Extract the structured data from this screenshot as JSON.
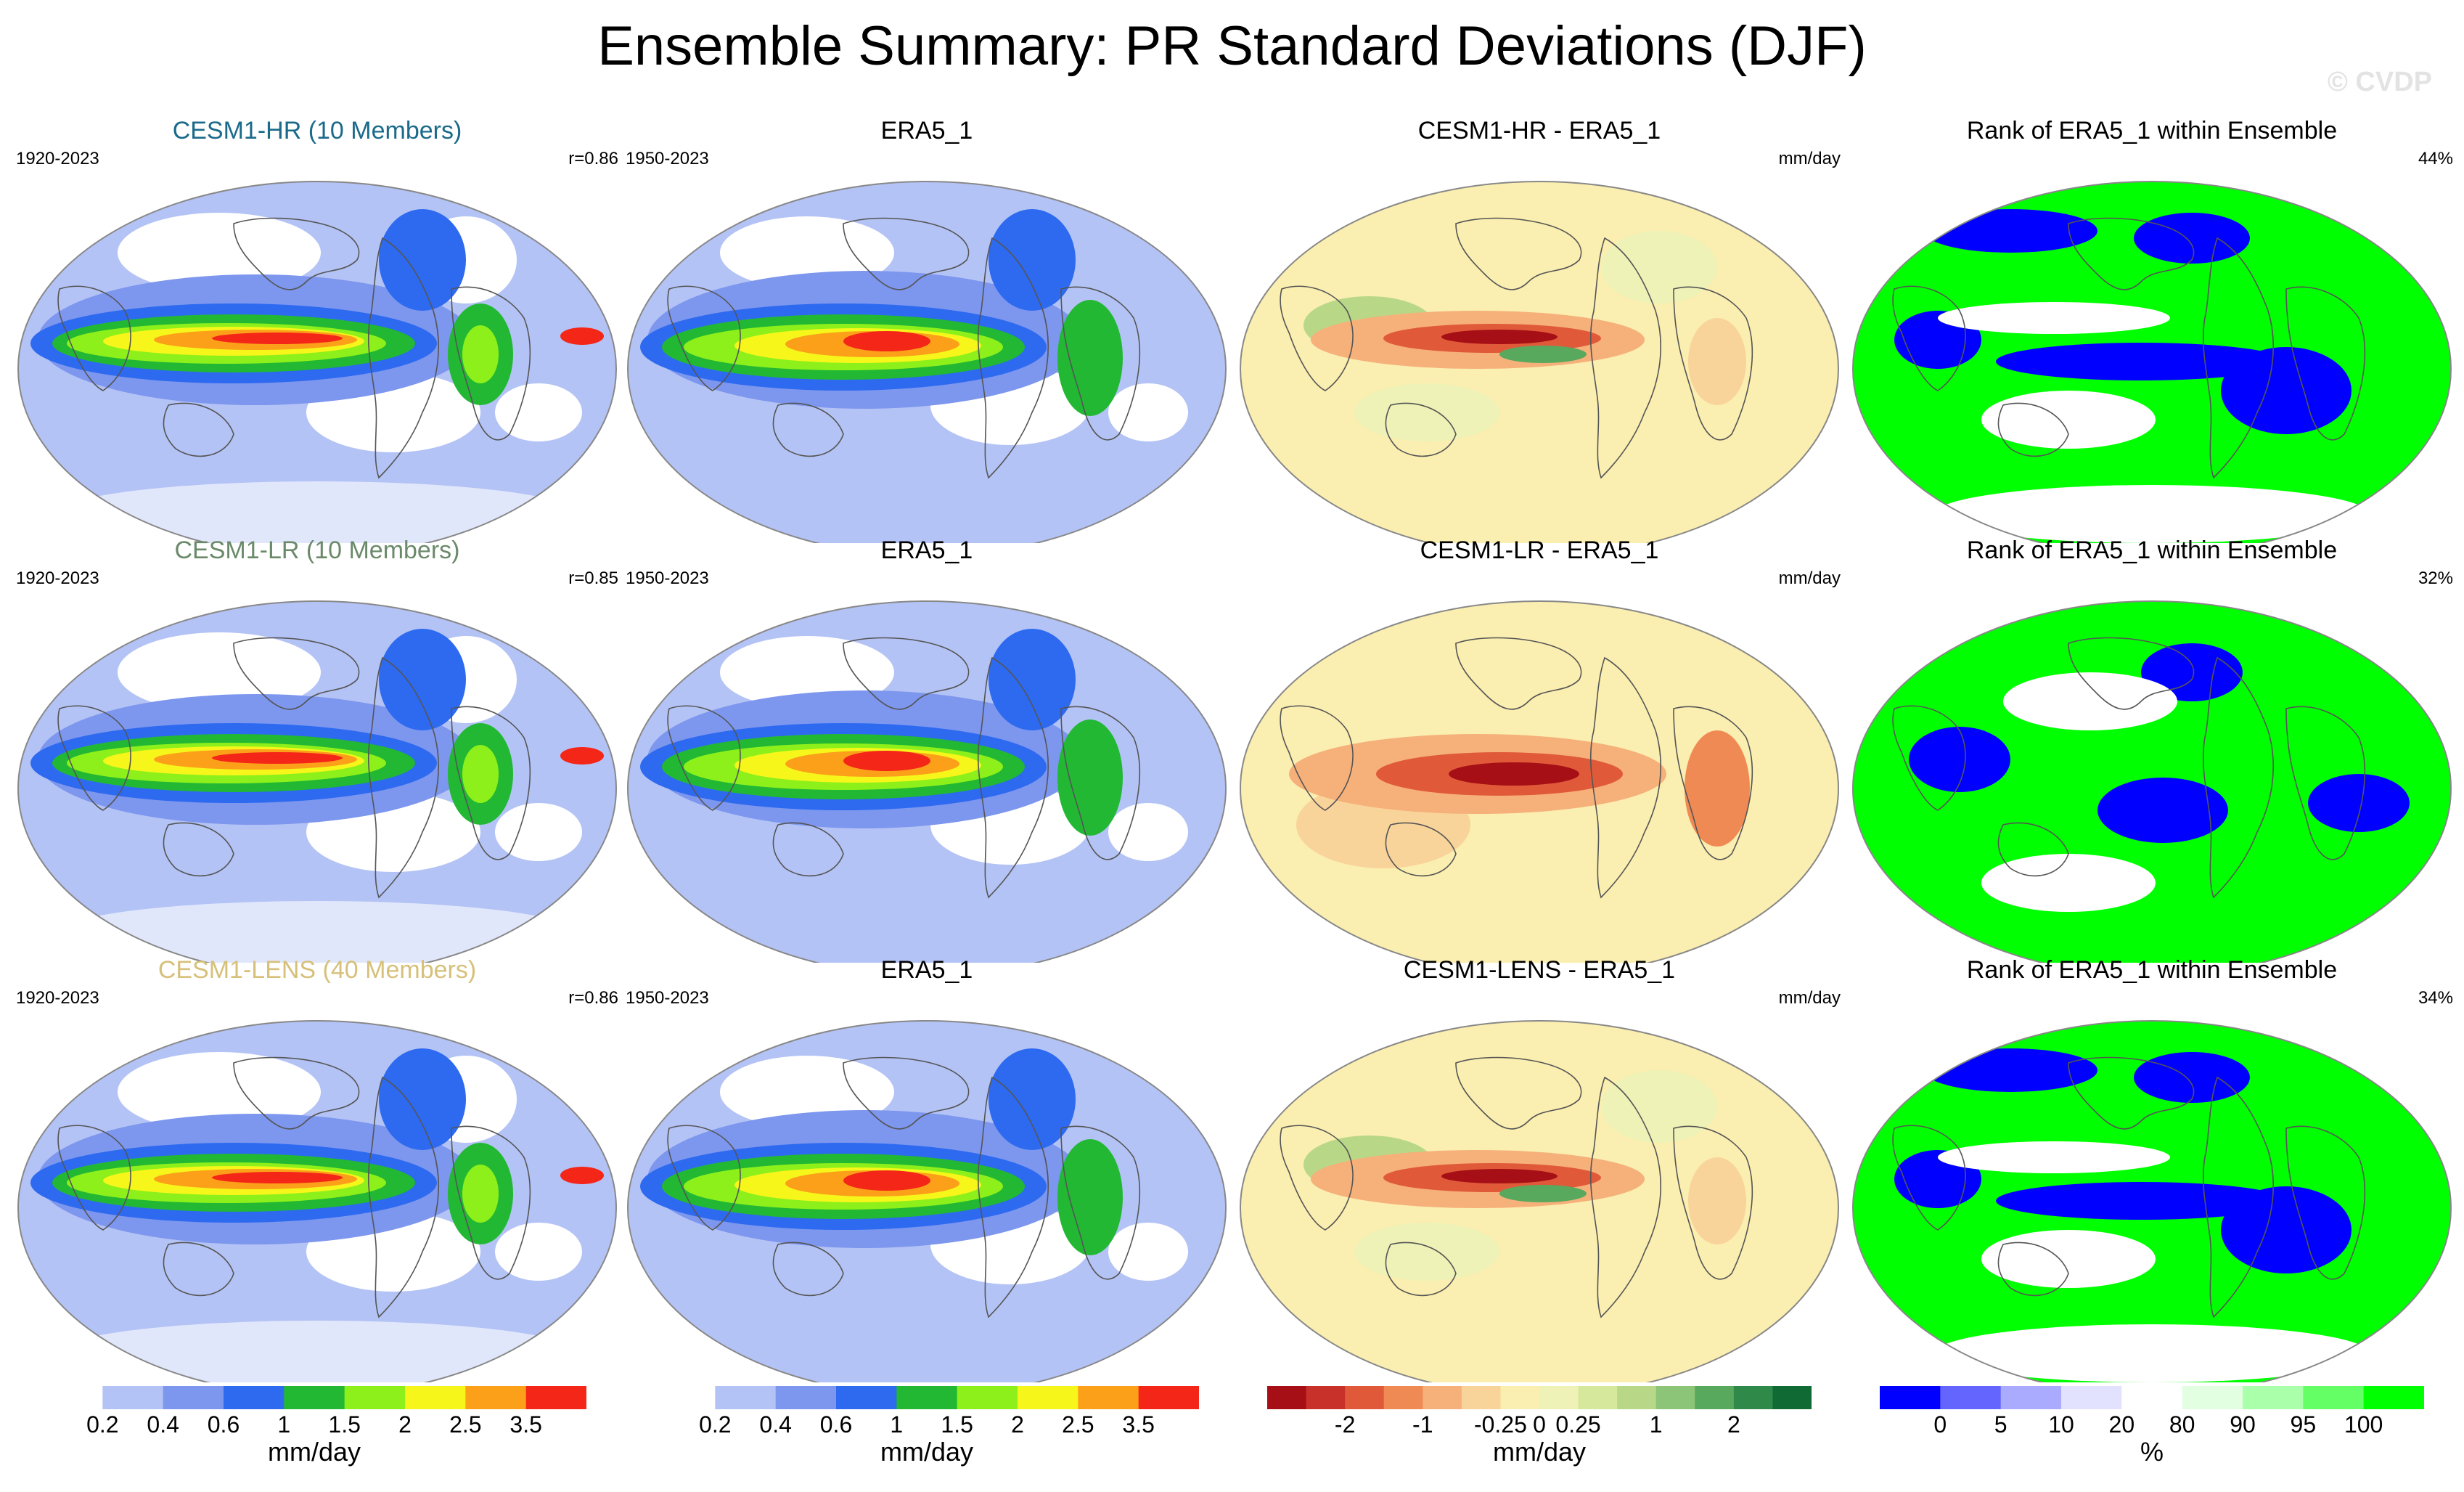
{
  "figure": {
    "title": "Ensemble Summary: PR Standard Deviations (DJF)",
    "watermark": "© CVDP"
  },
  "rows": [
    {
      "model": {
        "title": "CESM1-HR (10 Members)",
        "title_color": "#1a6a8a",
        "period": "1920-2023",
        "stat": "r=0.86"
      },
      "obs": {
        "title": "ERA5_1",
        "period": "1950-2023"
      },
      "diff": {
        "title": "CESM1-HR - ERA5_1",
        "units": "mm/day"
      },
      "rank": {
        "title": "Rank of ERA5_1 within Ensemble",
        "percent": "44%"
      }
    },
    {
      "model": {
        "title": "CESM1-LR (10 Members)",
        "title_color": "#6a8a6a",
        "period": "1920-2023",
        "stat": "r=0.85"
      },
      "obs": {
        "title": "ERA5_1",
        "period": "1950-2023"
      },
      "diff": {
        "title": "CESM1-LR - ERA5_1",
        "units": "mm/day"
      },
      "rank": {
        "title": "Rank of ERA5_1 within Ensemble",
        "percent": "32%"
      }
    },
    {
      "model": {
        "title": "CESM1-LENS (40 Members)",
        "title_color": "#d6c07a",
        "period": "1920-2023",
        "stat": "r=0.86"
      },
      "obs": {
        "title": "ERA5_1",
        "period": "1950-2023"
      },
      "diff": {
        "title": "CESM1-LENS - ERA5_1",
        "units": "mm/day"
      },
      "rank": {
        "title": "Rank of ERA5_1 within Ensemble",
        "percent": "34%"
      }
    }
  ],
  "colorbars": [
    {
      "units": "mm/day",
      "colors": [
        "#ffffff",
        "#b4c3f5",
        "#7d96ee",
        "#2d6af0",
        "#22b834",
        "#8df01a",
        "#f6f61a",
        "#fca01a",
        "#f42618"
      ],
      "tick_labels": [
        "0.2",
        "0.4",
        "0.6",
        "1",
        "1.5",
        "2",
        "2.5",
        "3.5"
      ]
    },
    {
      "units": "mm/day",
      "colors": [
        "#ffffff",
        "#b4c3f5",
        "#7d96ee",
        "#2d6af0",
        "#22b834",
        "#8df01a",
        "#f6f61a",
        "#fca01a",
        "#f42618"
      ],
      "tick_labels": [
        "0.2",
        "0.4",
        "0.6",
        "1",
        "1.5",
        "2",
        "2.5",
        "3.5"
      ]
    },
    {
      "units": "mm/day",
      "colors": [
        "#a50f15",
        "#c8302a",
        "#e05a3a",
        "#f08a55",
        "#f6b07a",
        "#f9d49a",
        "#faeeb0",
        "#eef2b6",
        "#d6e89c",
        "#b8d888",
        "#8cc478",
        "#58a85e",
        "#2f8a4a",
        "#0f6a34"
      ],
      "tick_labels": [
        "-2",
        "-1",
        "-0.25",
        "0",
        "0.25",
        "1",
        "2"
      ]
    },
    {
      "units": "%",
      "colors": [
        "#0000ff",
        "#6464ff",
        "#aaaaff",
        "#e2e2ff",
        "#ffffff",
        "#e2ffe2",
        "#aaffaa",
        "#64ff64",
        "#00ff00"
      ],
      "tick_labels": [
        "0",
        "5",
        "10",
        "20",
        "80",
        "90",
        "95",
        "100"
      ]
    }
  ]
}
